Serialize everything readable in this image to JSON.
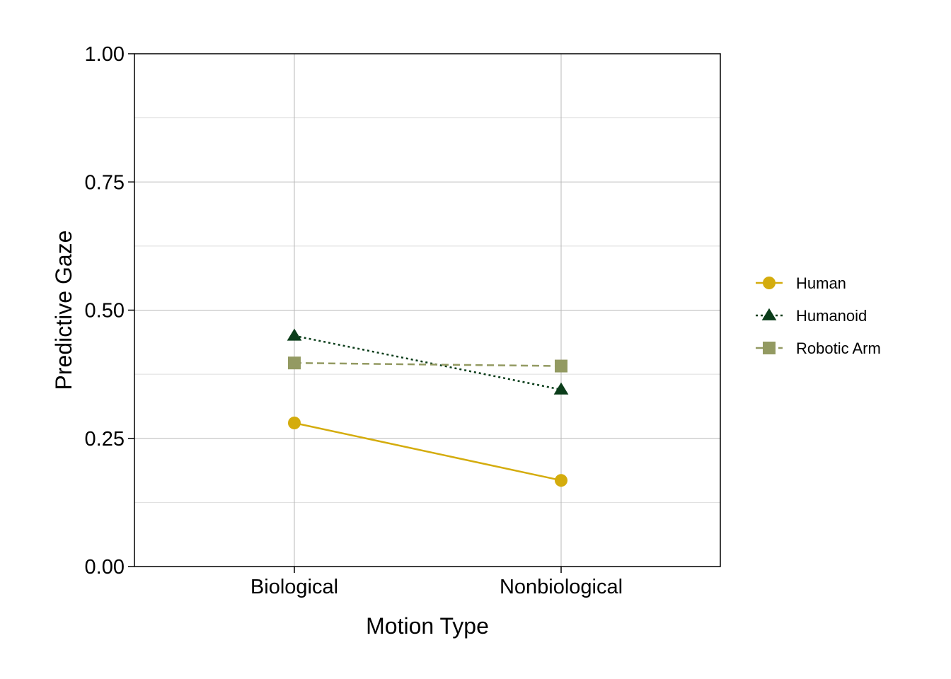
{
  "chart_data": {
    "type": "line",
    "title": "",
    "xlabel": "Motion Type",
    "ylabel": "Predictive Gaze",
    "categories": [
      "Biological",
      "Nonbiological"
    ],
    "ylim": [
      0,
      1
    ],
    "yticks": [
      0,
      0.25,
      0.5,
      0.75,
      1
    ],
    "ytick_labels": [
      "0.00",
      "0.25",
      "0.50",
      "0.75",
      "1.00"
    ],
    "grid": true,
    "legend_position": "right",
    "series": [
      {
        "name": "Human",
        "values": [
          0.28,
          0.168
        ],
        "color": "#d4ac0d",
        "marker": "circle",
        "line_style": "solid"
      },
      {
        "name": "Humanoid",
        "values": [
          0.45,
          0.345
        ],
        "color": "#0b3d1a",
        "marker": "triangle",
        "line_style": "dotted"
      },
      {
        "name": "Robotic Arm",
        "values": [
          0.397,
          0.391
        ],
        "color": "#939a62",
        "marker": "square",
        "line_style": "dashed"
      }
    ]
  }
}
